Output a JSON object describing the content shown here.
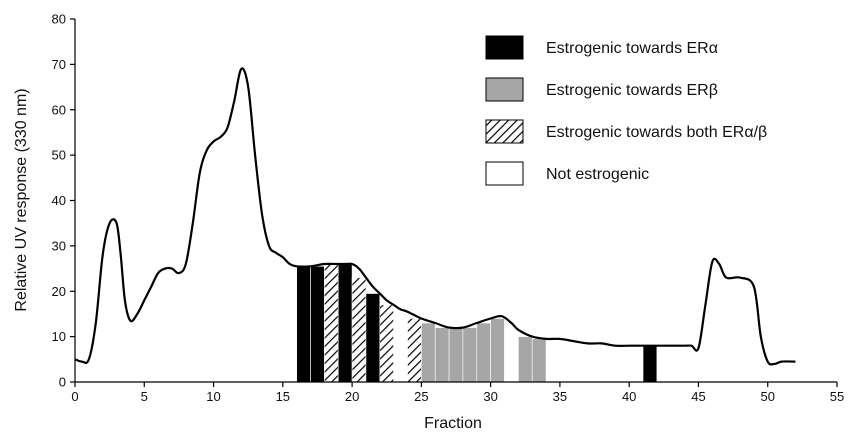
{
  "chart_data": {
    "type": "area",
    "title": "",
    "xlabel": "Fraction",
    "ylabel": "Relative UV response (330 nm)",
    "xlim": [
      0,
      55
    ],
    "ylim": [
      0,
      80
    ],
    "xticks": [
      0,
      5,
      10,
      15,
      20,
      25,
      30,
      35,
      40,
      45,
      50,
      55
    ],
    "yticks": [
      0,
      10,
      20,
      30,
      40,
      50,
      60,
      70,
      80
    ],
    "grid": false,
    "legend_position": "top-right",
    "curve": {
      "x": [
        0,
        0.5,
        1,
        1.5,
        2,
        2.5,
        3,
        3.3,
        3.6,
        4,
        4.5,
        5,
        5.5,
        6,
        6.5,
        7,
        7.5,
        8,
        8.5,
        9,
        9.5,
        10,
        10.5,
        11,
        11.5,
        12,
        12.5,
        13,
        13.5,
        14,
        14.5,
        15,
        15.5,
        16,
        17,
        18,
        19,
        19.5,
        20,
        20.5,
        21,
        21.5,
        22,
        22.5,
        23,
        23.5,
        24,
        25,
        26,
        27,
        28,
        29,
        30,
        30.8,
        31.5,
        32,
        33,
        34,
        35,
        36,
        37,
        38,
        39,
        40,
        41,
        42,
        43,
        44,
        44.5,
        45,
        45.5,
        46,
        46.5,
        47,
        48,
        49,
        49.5,
        50,
        50.5,
        51,
        52
      ],
      "y": [
        5,
        4.5,
        5,
        13,
        28,
        35,
        35,
        28,
        18,
        13.5,
        15,
        18,
        21,
        24,
        25,
        25,
        24,
        26,
        35,
        46,
        51,
        53,
        54,
        56,
        62,
        69,
        65,
        50,
        37,
        30,
        28.5,
        27.5,
        26,
        25.5,
        25.5,
        26,
        26,
        26,
        26,
        25,
        23,
        21,
        19.5,
        18,
        17,
        16,
        15.5,
        14,
        13,
        12,
        12,
        13,
        14,
        14.5,
        13,
        11.5,
        10,
        9.5,
        9.5,
        9,
        8.5,
        8.5,
        8,
        8,
        8,
        8,
        8,
        8,
        8,
        7.5,
        17,
        26.5,
        26,
        23,
        23,
        21,
        10,
        4.5,
        4,
        4.5,
        4.5
      ]
    },
    "categories": [
      "Estrogenic towards ERα",
      "Estrogenic towards ERβ",
      "Estrogenic towards both ERα/β",
      "Not estrogenic"
    ],
    "fraction_activity": [
      {
        "fraction": 16,
        "activity": "Estrogenic towards ERα"
      },
      {
        "fraction": 17,
        "activity": "Estrogenic towards ERα"
      },
      {
        "fraction": 18,
        "activity": "Estrogenic towards both ERα/β"
      },
      {
        "fraction": 19,
        "activity": "Estrogenic towards ERα"
      },
      {
        "fraction": 20,
        "activity": "Estrogenic towards both ERα/β"
      },
      {
        "fraction": 21,
        "activity": "Estrogenic towards ERα"
      },
      {
        "fraction": 22,
        "activity": "Estrogenic towards both ERα/β"
      },
      {
        "fraction": 23,
        "activity": "Not estrogenic"
      },
      {
        "fraction": 24,
        "activity": "Estrogenic towards both ERα/β"
      },
      {
        "fraction": 25,
        "activity": "Estrogenic towards ERβ"
      },
      {
        "fraction": 26,
        "activity": "Estrogenic towards ERβ"
      },
      {
        "fraction": 27,
        "activity": "Estrogenic towards ERβ"
      },
      {
        "fraction": 28,
        "activity": "Estrogenic towards ERβ"
      },
      {
        "fraction": 29,
        "activity": "Estrogenic towards ERβ"
      },
      {
        "fraction": 30,
        "activity": "Estrogenic towards ERβ"
      },
      {
        "fraction": 31,
        "activity": "Not estrogenic"
      },
      {
        "fraction": 32,
        "activity": "Estrogenic towards ERβ"
      },
      {
        "fraction": 33,
        "activity": "Estrogenic towards ERβ"
      },
      {
        "fraction": 41,
        "activity": "Estrogenic towards ERα"
      }
    ],
    "colors": {
      "Estrogenic towards ERα": "#000000",
      "Estrogenic towards ERβ": "#a6a6a6",
      "Estrogenic towards both ERα/β": "hatch",
      "Not estrogenic": "#ffffff",
      "line": "#000000"
    }
  }
}
